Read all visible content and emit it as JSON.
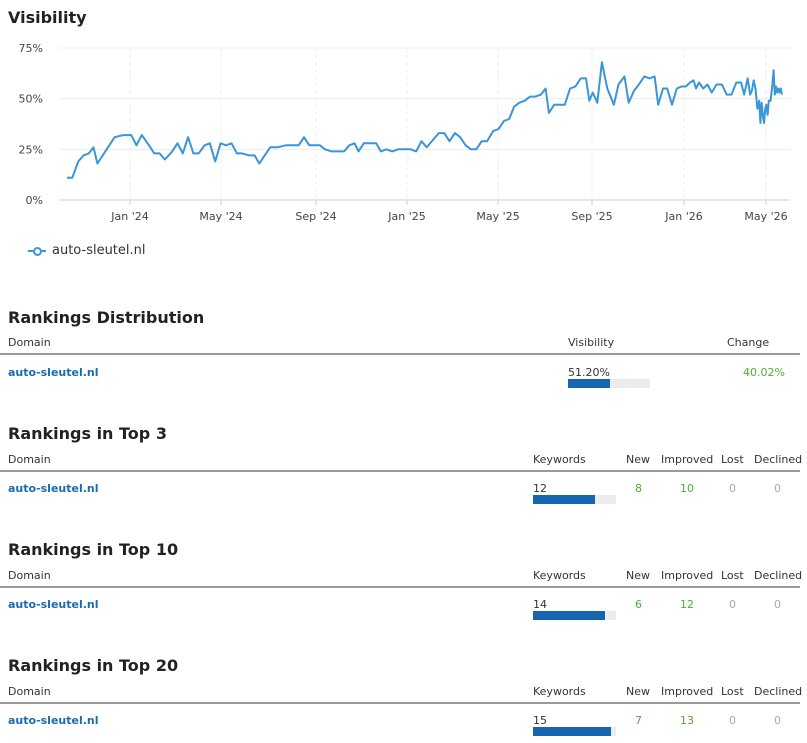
{
  "visibility": {
    "title": "Visibility",
    "legend_label": "auto-sleutel.nl",
    "series_color": "#3a95d9"
  },
  "chart_data": {
    "type": "line",
    "title": "Visibility",
    "xlabel": "",
    "ylabel": "",
    "y_ticks": [
      "0%",
      "25%",
      "50%",
      "75%"
    ],
    "ylim": [
      0,
      75
    ],
    "x_ticks": [
      "Jan '24",
      "May '24",
      "Sep '24",
      "Jan '25",
      "May '25",
      "Sep '25",
      "Jan '26",
      "May '26"
    ],
    "legend_position": "bottom-left",
    "grid": true,
    "series": [
      {
        "name": "auto-sleutel.nl",
        "points": [
          [
            "2023-10-01",
            11
          ],
          [
            "2023-10-09",
            11
          ],
          [
            "2023-10-18",
            19
          ],
          [
            "2023-10-26",
            22
          ],
          [
            "2023-11-03",
            23
          ],
          [
            "2023-11-10",
            26
          ],
          [
            "2023-11-16",
            18
          ],
          [
            "2023-11-24",
            22
          ],
          [
            "2023-12-02",
            26
          ],
          [
            "2023-12-12",
            31
          ],
          [
            "2023-12-25",
            32
          ],
          [
            "2024-01-06",
            32
          ],
          [
            "2024-01-14",
            27
          ],
          [
            "2024-01-22",
            32
          ],
          [
            "2024-02-02",
            27
          ],
          [
            "2024-02-10",
            23
          ],
          [
            "2024-02-18",
            23
          ],
          [
            "2024-02-26",
            20
          ],
          [
            "2024-03-08",
            24
          ],
          [
            "2024-03-16",
            28
          ],
          [
            "2024-03-24",
            23
          ],
          [
            "2024-04-01",
            31
          ],
          [
            "2024-04-09",
            23
          ],
          [
            "2024-04-17",
            23
          ],
          [
            "2024-04-26",
            27
          ],
          [
            "2024-05-04",
            28
          ],
          [
            "2024-05-12",
            19
          ],
          [
            "2024-05-20",
            28
          ],
          [
            "2024-05-28",
            27
          ],
          [
            "2024-06-05",
            28
          ],
          [
            "2024-06-13",
            23
          ],
          [
            "2024-06-21",
            23
          ],
          [
            "2024-07-01",
            22
          ],
          [
            "2024-07-09",
            22
          ],
          [
            "2024-07-16",
            18
          ],
          [
            "2024-07-24",
            22
          ],
          [
            "2024-08-01",
            26
          ],
          [
            "2024-08-12",
            26
          ],
          [
            "2024-08-24",
            27
          ],
          [
            "2024-09-04",
            27
          ],
          [
            "2024-09-12",
            27
          ],
          [
            "2024-09-20",
            31
          ],
          [
            "2024-09-28",
            27
          ],
          [
            "2024-10-06",
            27
          ],
          [
            "2024-10-14",
            27
          ],
          [
            "2024-10-22",
            25
          ],
          [
            "2024-11-01",
            24
          ],
          [
            "2024-11-11",
            24
          ],
          [
            "2024-11-20",
            24
          ],
          [
            "2024-11-28",
            27
          ],
          [
            "2024-12-06",
            28
          ],
          [
            "2024-12-12",
            24
          ],
          [
            "2024-12-20",
            28
          ],
          [
            "2024-12-30",
            28
          ],
          [
            "2025-01-08",
            28
          ],
          [
            "2025-01-15",
            24
          ],
          [
            "2025-01-23",
            25
          ],
          [
            "2025-02-01",
            24
          ],
          [
            "2025-02-10",
            25
          ],
          [
            "2025-02-20",
            25
          ],
          [
            "2025-03-01",
            25
          ],
          [
            "2025-03-09",
            24
          ],
          [
            "2025-03-17",
            29
          ],
          [
            "2025-03-25",
            26
          ],
          [
            "2025-04-04",
            30
          ],
          [
            "2025-04-12",
            33
          ],
          [
            "2025-04-20",
            33
          ],
          [
            "2025-04-28",
            29
          ],
          [
            "2025-05-06",
            33
          ],
          [
            "2025-05-14",
            31
          ],
          [
            "2025-05-22",
            27
          ],
          [
            "2025-05-30",
            25
          ],
          [
            "2025-06-07",
            25
          ],
          [
            "2025-06-15",
            29
          ],
          [
            "2025-06-23",
            29
          ],
          [
            "2025-07-02",
            34
          ],
          [
            "2025-07-10",
            35
          ],
          [
            "2025-07-18",
            39
          ],
          [
            "2025-07-26",
            40
          ],
          [
            "2025-08-02",
            46
          ],
          [
            "2025-08-10",
            48
          ],
          [
            "2025-08-18",
            49
          ],
          [
            "2025-08-26",
            51
          ],
          [
            "2025-09-03",
            51
          ],
          [
            "2025-09-11",
            52
          ],
          [
            "2025-09-18",
            55
          ],
          [
            "2025-09-23",
            43
          ],
          [
            "2025-10-01",
            47
          ],
          [
            "2025-10-09",
            47
          ],
          [
            "2025-10-17",
            47
          ],
          [
            "2025-10-25",
            55
          ],
          [
            "2025-11-02",
            56
          ],
          [
            "2025-11-10",
            60
          ],
          [
            "2025-11-18",
            60
          ],
          [
            "2025-11-23",
            49
          ],
          [
            "2025-11-28",
            53
          ],
          [
            "2025-12-05",
            48
          ],
          [
            "2025-12-12",
            68
          ],
          [
            "2025-12-20",
            55
          ],
          [
            "2025-12-30",
            47
          ],
          [
            "2026-01-06",
            57
          ],
          [
            "2026-01-15",
            61
          ],
          [
            "2026-01-22",
            48
          ],
          [
            "2026-01-31",
            54
          ],
          [
            "2026-02-08",
            57
          ],
          [
            "2026-02-17",
            61
          ],
          [
            "2026-02-26",
            60
          ],
          [
            "2026-03-06",
            61
          ],
          [
            "2026-03-12",
            47
          ],
          [
            "2026-03-20",
            55
          ],
          [
            "2026-03-27",
            55
          ],
          [
            "2026-04-04",
            47
          ],
          [
            "2026-04-12",
            55
          ],
          [
            "2026-04-20",
            56
          ],
          [
            "2026-04-27",
            56
          ],
          [
            "2026-05-04",
            58
          ],
          [
            "2026-05-10",
            59
          ],
          [
            "2026-05-14",
            55
          ],
          [
            "2026-05-19",
            58
          ],
          [
            "2026-05-26",
            55
          ],
          [
            "2026-06-02",
            57
          ],
          [
            "2026-06-09",
            53
          ],
          [
            "2026-06-17",
            57
          ],
          [
            "2026-06-26",
            57
          ],
          [
            "2026-07-04",
            52
          ],
          [
            "2026-07-12",
            52
          ],
          [
            "2026-07-20",
            58
          ],
          [
            "2026-07-28",
            58
          ],
          [
            "2026-08-02",
            52
          ],
          [
            "2026-08-08",
            60
          ],
          [
            "2026-08-12",
            52
          ],
          [
            "2026-08-15",
            54
          ],
          [
            "2026-08-18",
            59
          ],
          [
            "2026-08-21",
            55
          ],
          [
            "2026-08-24",
            45
          ],
          [
            "2026-08-27",
            49
          ],
          [
            "2026-08-29",
            38
          ],
          [
            "2026-08-31",
            48
          ],
          [
            "2026-09-02",
            42
          ],
          [
            "2026-09-04",
            38
          ],
          [
            "2026-09-06",
            45
          ],
          [
            "2026-09-08",
            47
          ],
          [
            "2026-09-10",
            42
          ],
          [
            "2026-09-12",
            49
          ],
          [
            "2026-09-15",
            49
          ],
          [
            "2026-09-18",
            57
          ],
          [
            "2026-09-20",
            64
          ],
          [
            "2026-09-22",
            52
          ],
          [
            "2026-09-24",
            56
          ],
          [
            "2026-09-26",
            53
          ],
          [
            "2026-09-28",
            55
          ],
          [
            "2026-09-30",
            53
          ],
          [
            "2026-10-02",
            55
          ],
          [
            "2026-10-04",
            52
          ]
        ]
      }
    ]
  },
  "rankings_distribution": {
    "title": "Rankings Distribution",
    "headers": {
      "domain": "Domain",
      "visibility": "Visibility",
      "change": "Change"
    },
    "rows": [
      {
        "domain": "auto-sleutel.nl",
        "visibility": "51.20%",
        "visibility_fraction": 0.512,
        "change": "40.02%"
      }
    ]
  },
  "top_tables": [
    {
      "title": "Rankings in Top 3",
      "headers": {
        "domain": "Domain",
        "keywords": "Keywords",
        "new": "New",
        "improved": "Improved",
        "lost": "Lost",
        "declined": "Declined"
      },
      "rows": [
        {
          "domain": "auto-sleutel.nl",
          "keywords": "12",
          "bar_fraction": 0.75,
          "new": "8",
          "improved": "10",
          "lost": "0",
          "declined": "0"
        }
      ]
    },
    {
      "title": "Rankings in Top 10",
      "headers": {
        "domain": "Domain",
        "keywords": "Keywords",
        "new": "New",
        "improved": "Improved",
        "lost": "Lost",
        "declined": "Declined"
      },
      "rows": [
        {
          "domain": "auto-sleutel.nl",
          "keywords": "14",
          "bar_fraction": 0.87,
          "new": "6",
          "improved": "12",
          "lost": "0",
          "declined": "0"
        }
      ]
    },
    {
      "title": "Rankings in Top 20",
      "headers": {
        "domain": "Domain",
        "keywords": "Keywords",
        "new": "New",
        "improved": "Improved",
        "lost": "Lost",
        "declined": "Declined"
      },
      "rows": [
        {
          "domain": "auto-sleutel.nl",
          "keywords": "15",
          "bar_fraction": 0.94,
          "new": "7",
          "improved": "13",
          "lost": "0",
          "declined": "0"
        }
      ]
    }
  ]
}
